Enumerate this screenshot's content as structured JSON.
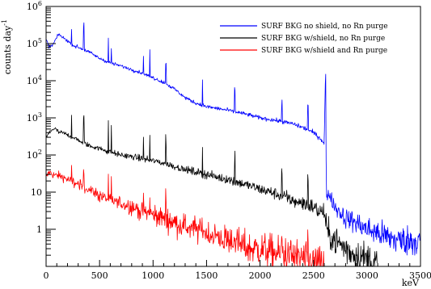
{
  "chart_data": {
    "type": "line",
    "xlabel": "keV",
    "ylabel": "counts day",
    "ylabel_exp": "-1",
    "xlim": [
      0,
      3500
    ],
    "ylim": [
      0.1,
      1000000
    ],
    "yscale": "log",
    "grid": false,
    "legend_position": "top-right",
    "x_ticks": [
      "0",
      "500",
      "1000",
      "1500",
      "2000",
      "2500",
      "3000",
      "3500"
    ],
    "x_tick_values": [
      0,
      500,
      1000,
      1500,
      2000,
      2500,
      3000,
      3500
    ],
    "y_ticks": [
      {
        "base": "1",
        "exp": "",
        "value": 1
      },
      {
        "base": "10",
        "exp": "",
        "value": 10
      },
      {
        "base": "10",
        "exp": "2",
        "value": 100
      },
      {
        "base": "10",
        "exp": "3",
        "value": 1000
      },
      {
        "base": "10",
        "exp": "4",
        "value": 10000
      },
      {
        "base": "10",
        "exp": "5",
        "value": 100000
      },
      {
        "base": "10",
        "exp": "6",
        "value": 1000000
      }
    ],
    "peaks_keV": [
      239,
      352,
      583,
      609,
      911,
      969,
      1120,
      1461,
      1764,
      2204,
      2448
    ],
    "series": [
      {
        "name": "SURF BKG no shield, no Rn purge",
        "color": "#0000ff",
        "peak_height": 4,
        "x": [
          5,
          30,
          60,
          90,
          120,
          150,
          200,
          250,
          300,
          400,
          500,
          600,
          700,
          800,
          900,
          1000,
          1100,
          1200,
          1300,
          1400,
          1500,
          1600,
          1700,
          1800,
          1900,
          2000,
          2100,
          2200,
          2300,
          2400,
          2500,
          2550,
          2580,
          2600,
          2610,
          2614,
          2620,
          2640,
          2700,
          2800,
          2900,
          3000,
          3100,
          3200,
          3300,
          3400,
          3500
        ],
        "y": [
          120000,
          80000,
          90000,
          130000,
          180000,
          150000,
          120000,
          90000,
          80000,
          60000,
          40000,
          30000,
          25000,
          20000,
          16000,
          12000,
          9000,
          6000,
          3500,
          2500,
          2000,
          1800,
          1600,
          1400,
          1200,
          1000,
          900,
          800,
          700,
          550,
          400,
          300,
          250,
          200,
          8000,
          15000,
          5,
          10,
          4,
          2,
          1.5,
          1,
          0.8,
          0.6,
          0.5,
          0.5,
          0.5
        ]
      },
      {
        "name": "SURF BKG w/shield, no Rn purge",
        "color": "#000000",
        "peak_height": 5,
        "x": [
          5,
          30,
          60,
          90,
          120,
          150,
          200,
          250,
          300,
          400,
          500,
          600,
          700,
          800,
          900,
          1000,
          1100,
          1200,
          1300,
          1400,
          1500,
          1600,
          1700,
          1800,
          1900,
          2000,
          2100,
          2200,
          2300,
          2400,
          2500,
          2550,
          2580,
          2600,
          2614,
          2630,
          2700,
          2800,
          2900,
          3000,
          3100
        ],
        "y": [
          300,
          400,
          500,
          500,
          400,
          400,
          350,
          300,
          250,
          180,
          150,
          120,
          100,
          90,
          80,
          70,
          60,
          50,
          40,
          35,
          30,
          25,
          22,
          18,
          15,
          12,
          10,
          8,
          6,
          5,
          4,
          3,
          3,
          3,
          1.5,
          0.8,
          0.5,
          0.3,
          0.2,
          0.15,
          0.12
        ]
      },
      {
        "name": "SURF BKG w/shield and Rn purge",
        "color": "#ff0000",
        "peak_height": 3,
        "x": [
          5,
          30,
          60,
          90,
          120,
          150,
          200,
          300,
          400,
          500,
          600,
          700,
          800,
          900,
          1000,
          1100,
          1200,
          1300,
          1400,
          1500,
          1600,
          1700,
          1800,
          1900,
          2000,
          2100,
          2200,
          2300,
          2400,
          2500,
          2600
        ],
        "y": [
          25,
          35,
          30,
          28,
          28,
          26,
          22,
          16,
          12,
          8,
          6,
          5,
          4,
          3,
          2.5,
          2,
          1.5,
          1.2,
          1,
          0.8,
          0.6,
          0.5,
          0.4,
          0.3,
          0.3,
          0.25,
          0.2,
          0.2,
          0.15,
          0.12,
          0.1
        ]
      }
    ]
  }
}
